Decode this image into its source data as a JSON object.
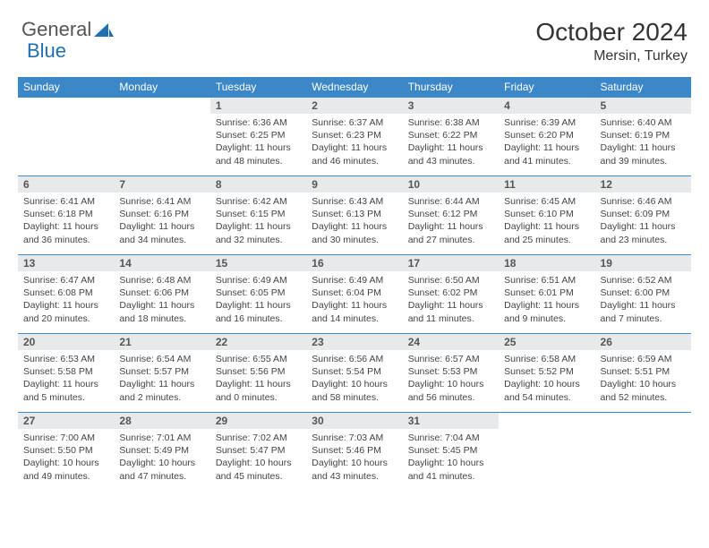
{
  "brand": {
    "part1": "General",
    "part2": "Blue"
  },
  "title": "October 2024",
  "location": "Mersin, Turkey",
  "colors": {
    "header_bg": "#3b87c8",
    "header_text": "#ffffff",
    "daynum_bg": "#e7e9eb",
    "border": "#3b87c8",
    "logo_blue": "#1f6fb2"
  },
  "weekdays": [
    "Sunday",
    "Monday",
    "Tuesday",
    "Wednesday",
    "Thursday",
    "Friday",
    "Saturday"
  ],
  "weeks": [
    [
      {
        "n": "",
        "sr": "",
        "ss": "",
        "dl": ""
      },
      {
        "n": "",
        "sr": "",
        "ss": "",
        "dl": ""
      },
      {
        "n": "1",
        "sr": "Sunrise: 6:36 AM",
        "ss": "Sunset: 6:25 PM",
        "dl": "Daylight: 11 hours and 48 minutes."
      },
      {
        "n": "2",
        "sr": "Sunrise: 6:37 AM",
        "ss": "Sunset: 6:23 PM",
        "dl": "Daylight: 11 hours and 46 minutes."
      },
      {
        "n": "3",
        "sr": "Sunrise: 6:38 AM",
        "ss": "Sunset: 6:22 PM",
        "dl": "Daylight: 11 hours and 43 minutes."
      },
      {
        "n": "4",
        "sr": "Sunrise: 6:39 AM",
        "ss": "Sunset: 6:20 PM",
        "dl": "Daylight: 11 hours and 41 minutes."
      },
      {
        "n": "5",
        "sr": "Sunrise: 6:40 AM",
        "ss": "Sunset: 6:19 PM",
        "dl": "Daylight: 11 hours and 39 minutes."
      }
    ],
    [
      {
        "n": "6",
        "sr": "Sunrise: 6:41 AM",
        "ss": "Sunset: 6:18 PM",
        "dl": "Daylight: 11 hours and 36 minutes."
      },
      {
        "n": "7",
        "sr": "Sunrise: 6:41 AM",
        "ss": "Sunset: 6:16 PM",
        "dl": "Daylight: 11 hours and 34 minutes."
      },
      {
        "n": "8",
        "sr": "Sunrise: 6:42 AM",
        "ss": "Sunset: 6:15 PM",
        "dl": "Daylight: 11 hours and 32 minutes."
      },
      {
        "n": "9",
        "sr": "Sunrise: 6:43 AM",
        "ss": "Sunset: 6:13 PM",
        "dl": "Daylight: 11 hours and 30 minutes."
      },
      {
        "n": "10",
        "sr": "Sunrise: 6:44 AM",
        "ss": "Sunset: 6:12 PM",
        "dl": "Daylight: 11 hours and 27 minutes."
      },
      {
        "n": "11",
        "sr": "Sunrise: 6:45 AM",
        "ss": "Sunset: 6:10 PM",
        "dl": "Daylight: 11 hours and 25 minutes."
      },
      {
        "n": "12",
        "sr": "Sunrise: 6:46 AM",
        "ss": "Sunset: 6:09 PM",
        "dl": "Daylight: 11 hours and 23 minutes."
      }
    ],
    [
      {
        "n": "13",
        "sr": "Sunrise: 6:47 AM",
        "ss": "Sunset: 6:08 PM",
        "dl": "Daylight: 11 hours and 20 minutes."
      },
      {
        "n": "14",
        "sr": "Sunrise: 6:48 AM",
        "ss": "Sunset: 6:06 PM",
        "dl": "Daylight: 11 hours and 18 minutes."
      },
      {
        "n": "15",
        "sr": "Sunrise: 6:49 AM",
        "ss": "Sunset: 6:05 PM",
        "dl": "Daylight: 11 hours and 16 minutes."
      },
      {
        "n": "16",
        "sr": "Sunrise: 6:49 AM",
        "ss": "Sunset: 6:04 PM",
        "dl": "Daylight: 11 hours and 14 minutes."
      },
      {
        "n": "17",
        "sr": "Sunrise: 6:50 AM",
        "ss": "Sunset: 6:02 PM",
        "dl": "Daylight: 11 hours and 11 minutes."
      },
      {
        "n": "18",
        "sr": "Sunrise: 6:51 AM",
        "ss": "Sunset: 6:01 PM",
        "dl": "Daylight: 11 hours and 9 minutes."
      },
      {
        "n": "19",
        "sr": "Sunrise: 6:52 AM",
        "ss": "Sunset: 6:00 PM",
        "dl": "Daylight: 11 hours and 7 minutes."
      }
    ],
    [
      {
        "n": "20",
        "sr": "Sunrise: 6:53 AM",
        "ss": "Sunset: 5:58 PM",
        "dl": "Daylight: 11 hours and 5 minutes."
      },
      {
        "n": "21",
        "sr": "Sunrise: 6:54 AM",
        "ss": "Sunset: 5:57 PM",
        "dl": "Daylight: 11 hours and 2 minutes."
      },
      {
        "n": "22",
        "sr": "Sunrise: 6:55 AM",
        "ss": "Sunset: 5:56 PM",
        "dl": "Daylight: 11 hours and 0 minutes."
      },
      {
        "n": "23",
        "sr": "Sunrise: 6:56 AM",
        "ss": "Sunset: 5:54 PM",
        "dl": "Daylight: 10 hours and 58 minutes."
      },
      {
        "n": "24",
        "sr": "Sunrise: 6:57 AM",
        "ss": "Sunset: 5:53 PM",
        "dl": "Daylight: 10 hours and 56 minutes."
      },
      {
        "n": "25",
        "sr": "Sunrise: 6:58 AM",
        "ss": "Sunset: 5:52 PM",
        "dl": "Daylight: 10 hours and 54 minutes."
      },
      {
        "n": "26",
        "sr": "Sunrise: 6:59 AM",
        "ss": "Sunset: 5:51 PM",
        "dl": "Daylight: 10 hours and 52 minutes."
      }
    ],
    [
      {
        "n": "27",
        "sr": "Sunrise: 7:00 AM",
        "ss": "Sunset: 5:50 PM",
        "dl": "Daylight: 10 hours and 49 minutes."
      },
      {
        "n": "28",
        "sr": "Sunrise: 7:01 AM",
        "ss": "Sunset: 5:49 PM",
        "dl": "Daylight: 10 hours and 47 minutes."
      },
      {
        "n": "29",
        "sr": "Sunrise: 7:02 AM",
        "ss": "Sunset: 5:47 PM",
        "dl": "Daylight: 10 hours and 45 minutes."
      },
      {
        "n": "30",
        "sr": "Sunrise: 7:03 AM",
        "ss": "Sunset: 5:46 PM",
        "dl": "Daylight: 10 hours and 43 minutes."
      },
      {
        "n": "31",
        "sr": "Sunrise: 7:04 AM",
        "ss": "Sunset: 5:45 PM",
        "dl": "Daylight: 10 hours and 41 minutes."
      },
      {
        "n": "",
        "sr": "",
        "ss": "",
        "dl": ""
      },
      {
        "n": "",
        "sr": "",
        "ss": "",
        "dl": ""
      }
    ]
  ]
}
